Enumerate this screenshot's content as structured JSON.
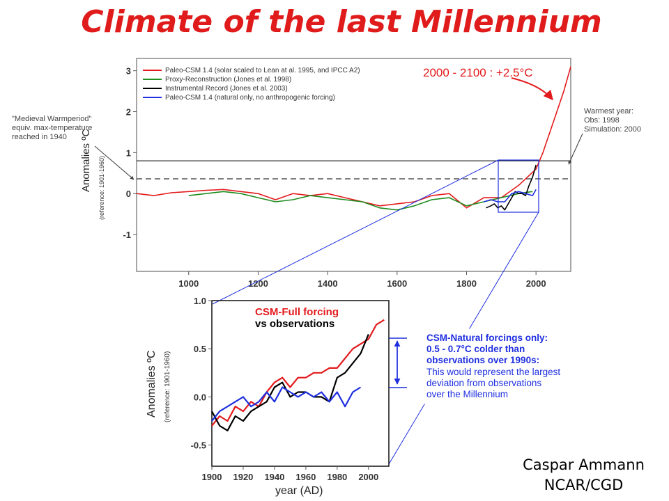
{
  "slide": {
    "title": "Climate of the last Millennium",
    "credit_line1": "Caspar Ammann",
    "credit_line2": "NCAR/CGD"
  },
  "colors": {
    "title": "#e01b1b",
    "full_forcing": "#e31a1c",
    "proxy": "#1e8c1e",
    "instrumental": "#000000",
    "natural": "#1f2fe0",
    "zoom_box": "#1f2fe0",
    "pointer_arrow": "#e31a1c"
  },
  "chart_data": [
    {
      "type": "line",
      "panel": "millennium",
      "ylabel": "Anomalies ºC",
      "ylabel_note": "(reference: 1901-1960)",
      "xlim": [
        850,
        2100
      ],
      "ylim": [
        -1.9,
        3.3
      ],
      "xticks": [
        1000,
        1200,
        1400,
        1600,
        1800,
        2000
      ],
      "yticks": [
        -1,
        0,
        1,
        2,
        3
      ],
      "legend_position": "top-left",
      "legend": [
        "Paleo-CSM 1.4 (solar scaled to Lean at al. 1995, and IPCC A2)",
        "Proxy-Reconstruction (Jones et al. 1998)",
        "Instrumental Record (Jones et al. 2003)",
        "Paleo-CSM 1.4 (natural only, no anthropogenic forcing)"
      ],
      "series": [
        {
          "name": "Paleo-CSM 1.4 (solar scaled to Lean at al. 1995, and IPCC A2)",
          "x": [
            850,
            900,
            950,
            1000,
            1050,
            1100,
            1150,
            1200,
            1250,
            1300,
            1350,
            1400,
            1450,
            1500,
            1550,
            1600,
            1650,
            1700,
            1750,
            1800,
            1850,
            1900,
            1950,
            2000,
            2020,
            2040,
            2060,
            2080,
            2100
          ],
          "y": [
            0.0,
            -0.05,
            0.02,
            0.05,
            0.08,
            0.1,
            0.05,
            0.0,
            -0.15,
            0.0,
            -0.05,
            0.0,
            -0.1,
            -0.2,
            -0.3,
            -0.25,
            -0.2,
            -0.05,
            0.0,
            -0.35,
            -0.1,
            -0.1,
            0.2,
            0.6,
            1.0,
            1.5,
            2.0,
            2.5,
            3.1
          ]
        },
        {
          "name": "Proxy-Reconstruction (Jones et al. 1998)",
          "x": [
            1000,
            1050,
            1100,
            1150,
            1200,
            1250,
            1300,
            1350,
            1400,
            1450,
            1500,
            1550,
            1600,
            1650,
            1700,
            1750,
            1800,
            1850,
            1900,
            1950,
            1990
          ],
          "y": [
            -0.05,
            0.0,
            0.05,
            0.0,
            -0.1,
            -0.2,
            -0.15,
            -0.05,
            -0.1,
            -0.15,
            -0.2,
            -0.35,
            -0.4,
            -0.3,
            -0.15,
            -0.1,
            -0.3,
            -0.2,
            -0.1,
            0.0,
            0.05
          ]
        },
        {
          "name": "Instrumental Record (Jones et al. 2003)",
          "x": [
            1856,
            1870,
            1880,
            1890,
            1900,
            1910,
            1920,
            1930,
            1940,
            1950,
            1960,
            1970,
            1980,
            1990,
            2000
          ],
          "y": [
            -0.35,
            -0.3,
            -0.25,
            -0.35,
            -0.3,
            -0.4,
            -0.25,
            -0.1,
            0.05,
            0.0,
            0.0,
            -0.05,
            0.2,
            0.4,
            0.7
          ]
        },
        {
          "name": "Paleo-CSM 1.4 (natural only, no anthropogenic forcing)",
          "x": [
            1850,
            1870,
            1890,
            1910,
            1930,
            1950,
            1970,
            1990,
            2000
          ],
          "y": [
            -0.2,
            -0.15,
            -0.2,
            -0.2,
            0.0,
            0.05,
            0.0,
            -0.05,
            0.1
          ]
        }
      ],
      "reference_lines": {
        "solid_y": 0.8,
        "dashed_y": 0.36
      },
      "annotations": {
        "projection": "2000 - 2100 : +2.5°C",
        "left_note": [
          "\"Medieval Warmperiod\"",
          "equiv. max-temperature",
          "reached in 1940"
        ],
        "right_note": [
          "Warmest year:",
          "Obs: 1998",
          "Simulation: 2000"
        ]
      }
    },
    {
      "type": "line",
      "panel": "twentieth-century zoom",
      "xlabel": "year (AD)",
      "ylabel": "Anomalies ºC",
      "ylabel_note": "(reference: 1901-1960)",
      "xlim": [
        1900,
        2013
      ],
      "ylim": [
        -0.72,
        1.0
      ],
      "xticks": [
        1900,
        1920,
        1940,
        1960,
        1980,
        2000
      ],
      "yticks": [
        -0.5,
        0.0,
        0.5,
        1.0
      ],
      "series": [
        {
          "name": "CSM-Full forcing",
          "x": [
            1900,
            1905,
            1910,
            1915,
            1920,
            1925,
            1930,
            1935,
            1940,
            1945,
            1950,
            1955,
            1960,
            1965,
            1970,
            1975,
            1980,
            1985,
            1990,
            1995,
            2000,
            2005,
            2010
          ],
          "y": [
            -0.3,
            -0.2,
            -0.25,
            -0.1,
            -0.15,
            -0.05,
            -0.1,
            0.05,
            0.15,
            0.2,
            0.1,
            0.2,
            0.2,
            0.25,
            0.25,
            0.3,
            0.3,
            0.4,
            0.5,
            0.55,
            0.6,
            0.75,
            0.8
          ]
        },
        {
          "name": "observations",
          "x": [
            1900,
            1905,
            1910,
            1915,
            1920,
            1925,
            1930,
            1935,
            1940,
            1945,
            1950,
            1955,
            1960,
            1965,
            1970,
            1975,
            1980,
            1985,
            1990,
            1995,
            2000
          ],
          "y": [
            -0.15,
            -0.3,
            -0.35,
            -0.2,
            -0.25,
            -0.15,
            -0.1,
            -0.05,
            0.1,
            0.15,
            0.0,
            0.05,
            0.05,
            0.0,
            0.0,
            -0.05,
            0.2,
            0.25,
            0.35,
            0.45,
            0.65
          ]
        },
        {
          "name": "CSM-Natural forcings only",
          "x": [
            1900,
            1905,
            1910,
            1915,
            1920,
            1925,
            1930,
            1935,
            1940,
            1945,
            1950,
            1955,
            1960,
            1965,
            1970,
            1975,
            1980,
            1985,
            1990,
            1995
          ],
          "y": [
            -0.25,
            -0.15,
            -0.1,
            -0.05,
            0.0,
            -0.1,
            -0.05,
            0.05,
            -0.05,
            0.1,
            0.05,
            0.0,
            0.05,
            0.0,
            0.05,
            -0.05,
            0.05,
            -0.1,
            0.05,
            0.1
          ]
        }
      ],
      "legend": [
        "CSM-Full forcing",
        "vs observations"
      ],
      "callout": {
        "line1": "CSM-Natural forcings only:",
        "line2": "0.5 - 0.7°C colder than",
        "line3": "observations over 1990s:",
        "line4": "This would represent the largest",
        "line5": "deviation from observations",
        "line6": "over the Millennium"
      }
    }
  ]
}
